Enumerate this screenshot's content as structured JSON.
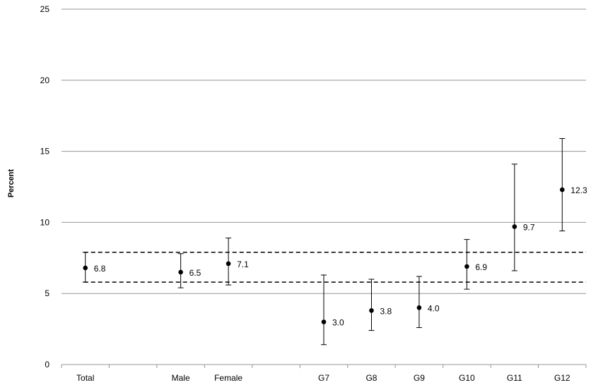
{
  "chart_data": {
    "type": "scatter",
    "title": "",
    "xlabel": "",
    "ylabel": "Percent",
    "ylim": [
      0,
      25
    ],
    "yticks": [
      0,
      5,
      10,
      15,
      20,
      25
    ],
    "grid": true,
    "legend": "none",
    "categories": [
      "Total",
      "",
      "Male",
      "Female",
      "",
      "G7",
      "G8",
      "G9",
      "G10",
      "G11",
      "G12"
    ],
    "points": [
      {
        "category": "Total",
        "value": 6.8,
        "label": "6.8",
        "ci": [
          5.8,
          7.9
        ]
      },
      {
        "category": "Male",
        "value": 6.5,
        "label": "6.5",
        "ci": [
          5.4,
          7.8
        ]
      },
      {
        "category": "Female",
        "value": 7.1,
        "label": "7.1",
        "ci": [
          5.6,
          8.9
        ]
      },
      {
        "category": "G7",
        "value": 3.0,
        "label": "3.0",
        "ci": [
          1.4,
          6.3
        ]
      },
      {
        "category": "G8",
        "value": 3.8,
        "label": "3.8",
        "ci": [
          2.4,
          6.0
        ]
      },
      {
        "category": "G9",
        "value": 4.0,
        "label": "4.0",
        "ci": [
          2.6,
          6.2
        ]
      },
      {
        "category": "G10",
        "value": 6.9,
        "label": "6.9",
        "ci": [
          5.3,
          8.8
        ]
      },
      {
        "category": "G11",
        "value": 9.7,
        "label": "9.7",
        "ci": [
          6.6,
          14.1
        ]
      },
      {
        "category": "G12",
        "value": 12.3,
        "label": "12.3",
        "ci": [
          9.4,
          15.9
        ]
      }
    ],
    "reference_lines": [
      {
        "value": 7.9,
        "style": "dashed"
      },
      {
        "value": 5.8,
        "style": "dashed"
      }
    ],
    "colors": {
      "marker": "#000000",
      "grid": "#969696",
      "reference": "#000000"
    }
  }
}
